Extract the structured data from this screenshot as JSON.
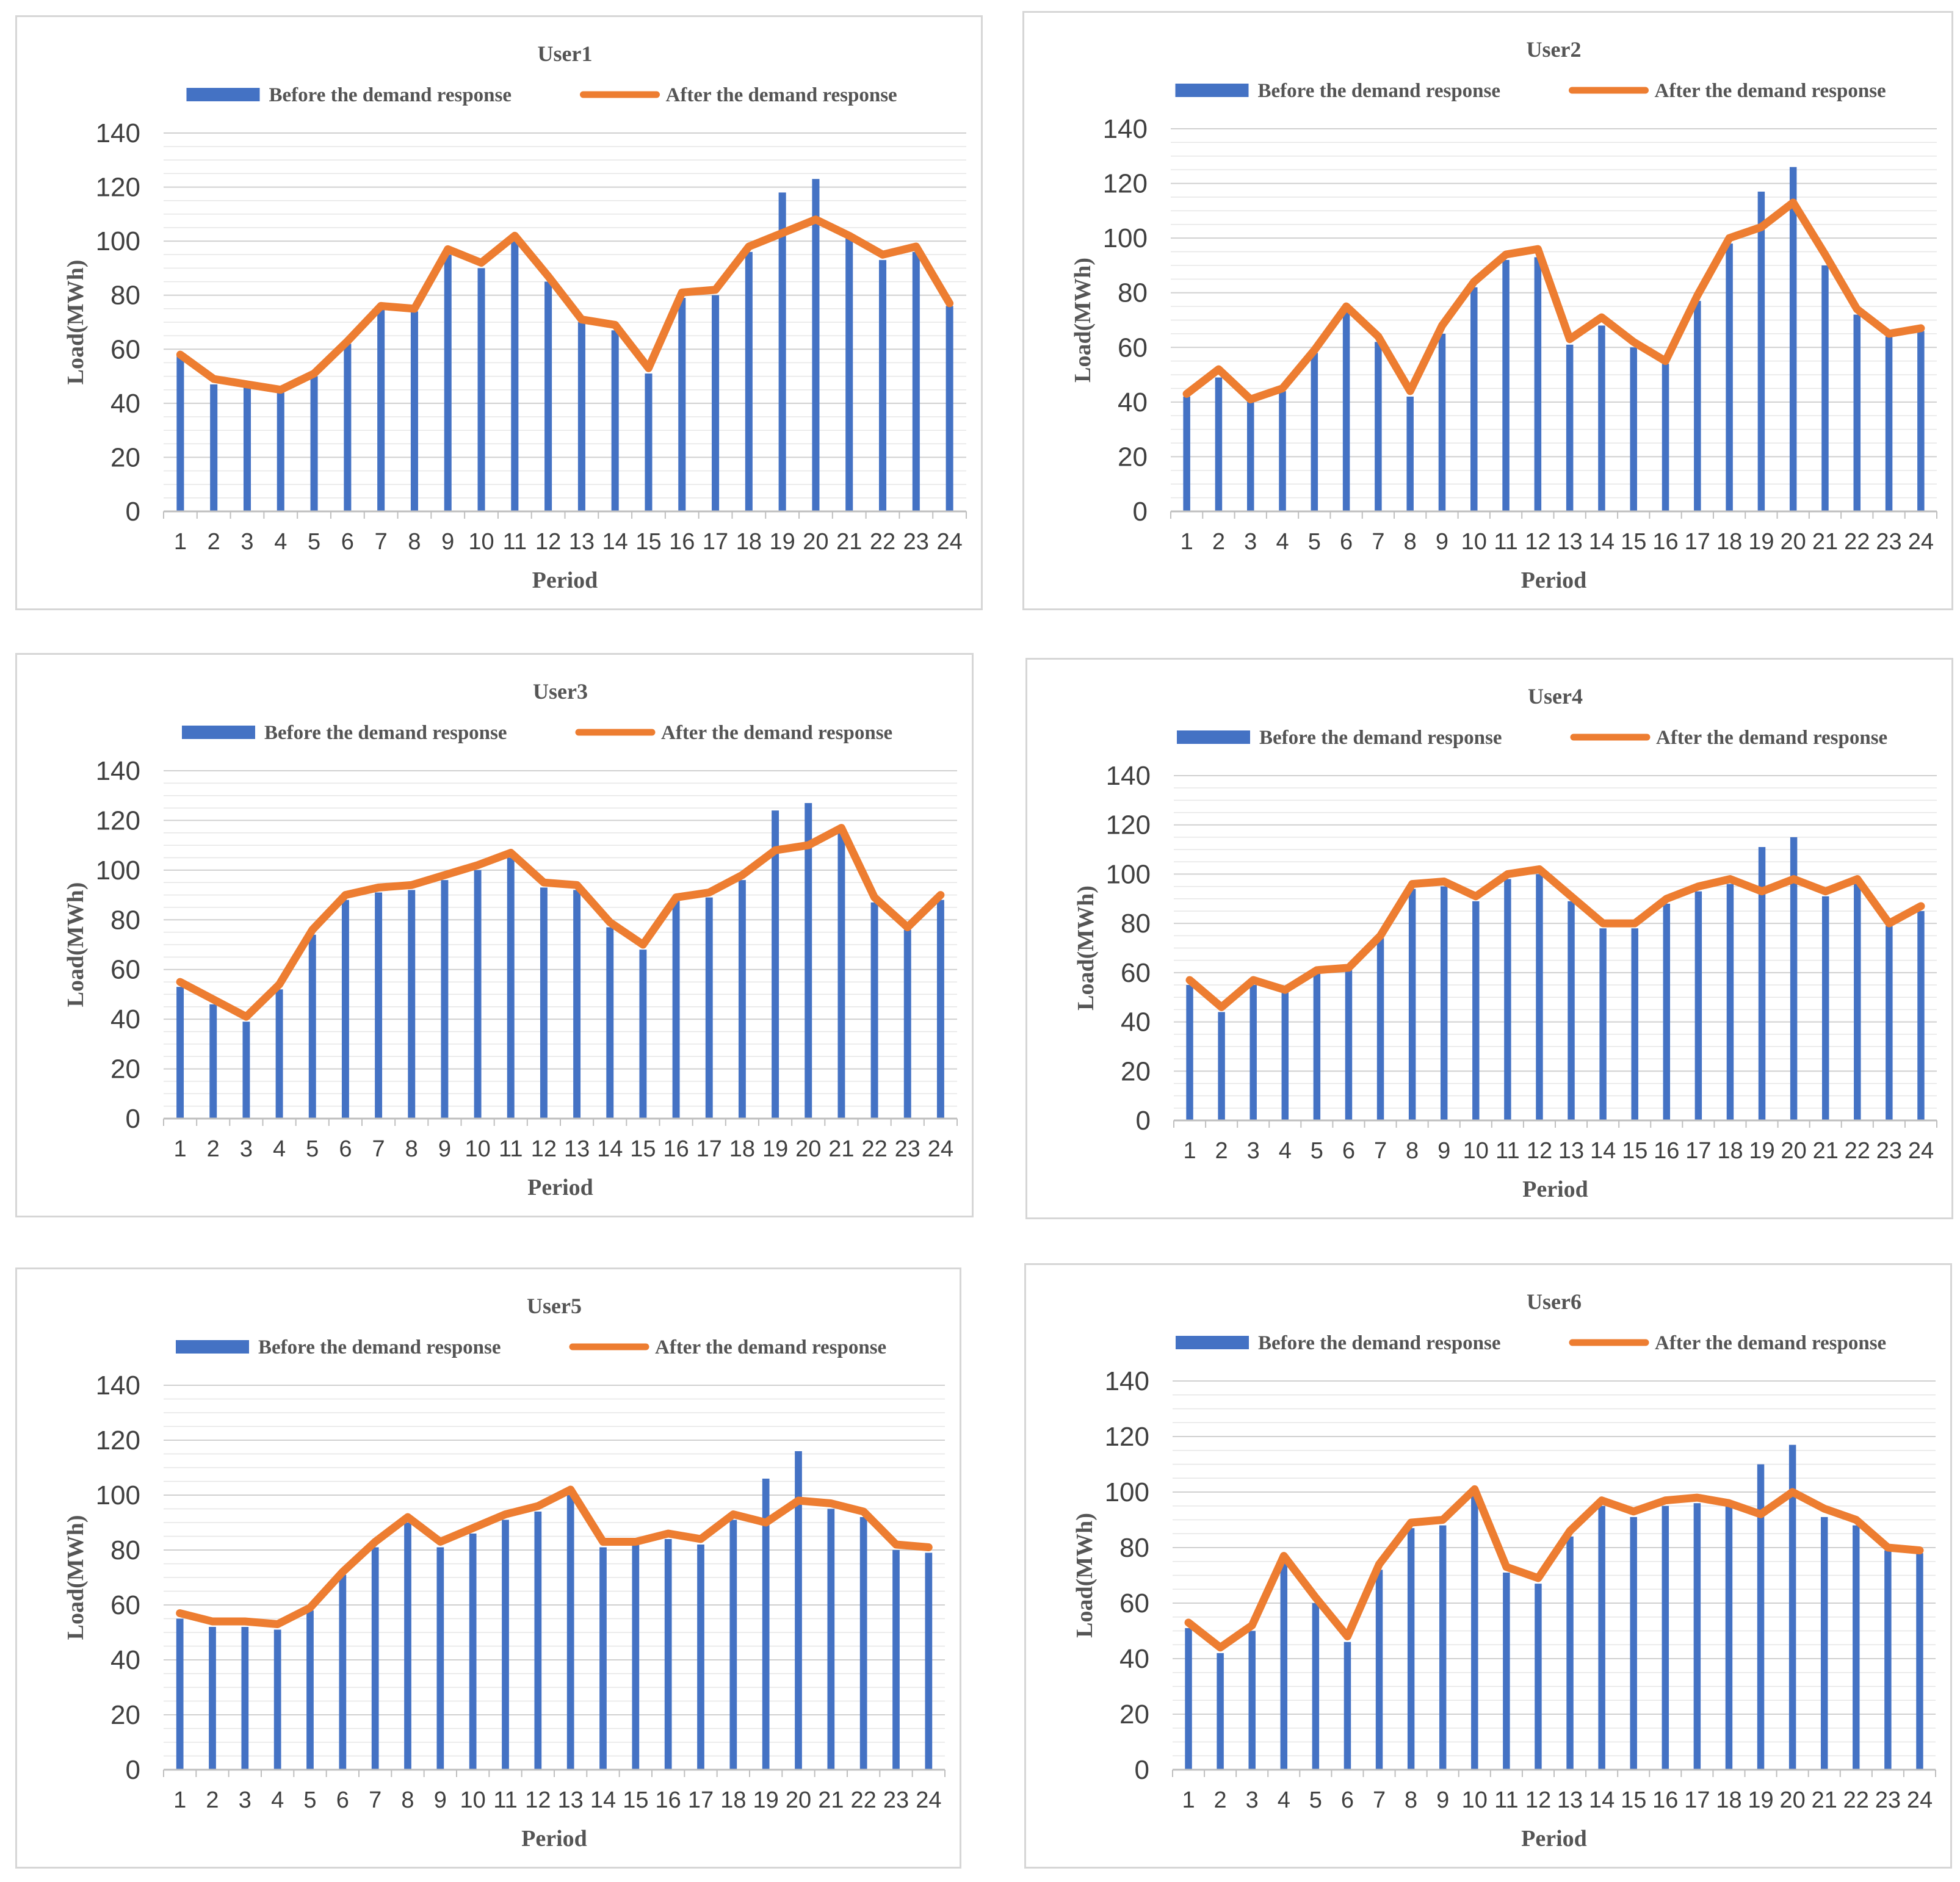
{
  "chart_data": [
    {
      "type": "bar+line",
      "title": "User1",
      "xlabel": "Period",
      "ylabel": "Load(MWh)",
      "ylim": [
        0,
        140
      ],
      "yticks": [
        0,
        20,
        40,
        60,
        80,
        100,
        120,
        140
      ],
      "categories": [
        "1",
        "2",
        "3",
        "4",
        "5",
        "6",
        "7",
        "8",
        "9",
        "10",
        "11",
        "12",
        "13",
        "14",
        "15",
        "16",
        "17",
        "18",
        "19",
        "20",
        "21",
        "22",
        "23",
        "24"
      ],
      "series": [
        {
          "name": "Before the demand response",
          "kind": "bar",
          "color": "#4472C4",
          "values": [
            58,
            47,
            46,
            44,
            50,
            62,
            76,
            74,
            95,
            90,
            100,
            85,
            70,
            67,
            51,
            79,
            80,
            96,
            118,
            123,
            101,
            93,
            96,
            76
          ]
        },
        {
          "name": "After the demand response",
          "kind": "line",
          "color": "#ED7D31",
          "values": [
            58,
            49,
            47,
            45,
            51,
            63,
            76,
            75,
            97,
            92,
            102,
            87,
            71,
            69,
            53,
            81,
            82,
            98,
            103,
            108,
            102,
            95,
            98,
            77
          ]
        }
      ]
    },
    {
      "type": "bar+line",
      "title": "User2",
      "xlabel": "Period",
      "ylabel": "Load(MWh)",
      "ylim": [
        0,
        140
      ],
      "yticks": [
        0,
        20,
        40,
        60,
        80,
        100,
        120,
        140
      ],
      "categories": [
        "1",
        "2",
        "3",
        "4",
        "5",
        "6",
        "7",
        "8",
        "9",
        "10",
        "11",
        "12",
        "13",
        "14",
        "15",
        "16",
        "17",
        "18",
        "19",
        "20",
        "21",
        "22",
        "23",
        "24"
      ],
      "series": [
        {
          "name": "Before the demand response",
          "kind": "bar",
          "color": "#4472C4",
          "values": [
            42,
            49,
            40,
            44,
            58,
            73,
            62,
            42,
            65,
            82,
            92,
            93,
            61,
            68,
            60,
            54,
            77,
            98,
            117,
            126,
            90,
            72,
            64,
            66
          ]
        },
        {
          "name": "After the demand response",
          "kind": "line",
          "color": "#ED7D31",
          "values": [
            43,
            52,
            41,
            45,
            59,
            75,
            64,
            44,
            68,
            84,
            94,
            96,
            63,
            71,
            62,
            55,
            79,
            100,
            104,
            113,
            94,
            74,
            65,
            67
          ]
        }
      ]
    },
    {
      "type": "bar+line",
      "title": "User3",
      "xlabel": "Period",
      "ylabel": "Load(MWh)",
      "ylim": [
        0,
        140
      ],
      "yticks": [
        0,
        20,
        40,
        60,
        80,
        100,
        120,
        140
      ],
      "categories": [
        "1",
        "2",
        "3",
        "4",
        "5",
        "6",
        "7",
        "8",
        "9",
        "10",
        "11",
        "12",
        "13",
        "14",
        "15",
        "16",
        "17",
        "18",
        "19",
        "20",
        "21",
        "22",
        "23",
        "24"
      ],
      "series": [
        {
          "name": "Before the demand response",
          "kind": "bar",
          "color": "#4472C4",
          "values": [
            53,
            46,
            39,
            52,
            74,
            88,
            91,
            92,
            96,
            100,
            105,
            93,
            92,
            77,
            68,
            88,
            89,
            96,
            124,
            127,
            116,
            87,
            76,
            88
          ]
        },
        {
          "name": "After the demand response",
          "kind": "line",
          "color": "#ED7D31",
          "values": [
            55,
            48,
            41,
            54,
            76,
            90,
            93,
            94,
            98,
            102,
            107,
            95,
            94,
            79,
            70,
            89,
            91,
            98,
            108,
            110,
            117,
            89,
            77,
            90
          ]
        }
      ]
    },
    {
      "type": "bar+line",
      "title": "User4",
      "xlabel": "Period",
      "ylabel": "Load(MWh)",
      "ylim": [
        0,
        140
      ],
      "yticks": [
        0,
        20,
        40,
        60,
        80,
        100,
        120,
        140
      ],
      "categories": [
        "1",
        "2",
        "3",
        "4",
        "5",
        "6",
        "7",
        "8",
        "9",
        "10",
        "11",
        "12",
        "13",
        "14",
        "15",
        "16",
        "17",
        "18",
        "19",
        "20",
        "21",
        "22",
        "23",
        "24"
      ],
      "series": [
        {
          "name": "Before the demand response",
          "kind": "bar",
          "color": "#4472C4",
          "values": [
            55,
            44,
            55,
            52,
            60,
            61,
            74,
            94,
            95,
            89,
            98,
            100,
            89,
            78,
            78,
            88,
            93,
            96,
            111,
            115,
            91,
            96,
            79,
            85
          ]
        },
        {
          "name": "After the demand response",
          "kind": "line",
          "color": "#ED7D31",
          "values": [
            57,
            46,
            57,
            53,
            61,
            62,
            75,
            96,
            97,
            91,
            100,
            102,
            91,
            80,
            80,
            90,
            95,
            98,
            93,
            98,
            93,
            98,
            80,
            87
          ]
        }
      ]
    },
    {
      "type": "bar+line",
      "title": "User5",
      "xlabel": "Period",
      "ylabel": "Load(MWh)",
      "ylim": [
        0,
        140
      ],
      "yticks": [
        0,
        20,
        40,
        60,
        80,
        100,
        120,
        140
      ],
      "categories": [
        "1",
        "2",
        "3",
        "4",
        "5",
        "6",
        "7",
        "8",
        "9",
        "10",
        "11",
        "12",
        "13",
        "14",
        "15",
        "16",
        "17",
        "18",
        "19",
        "20",
        "21",
        "22",
        "23",
        "24"
      ],
      "series": [
        {
          "name": "Before the demand response",
          "kind": "bar",
          "color": "#4472C4",
          "values": [
            55,
            52,
            52,
            51,
            58,
            71,
            81,
            90,
            81,
            86,
            91,
            94,
            100,
            81,
            82,
            84,
            82,
            91,
            106,
            116,
            95,
            92,
            80,
            79
          ]
        },
        {
          "name": "After the demand response",
          "kind": "line",
          "color": "#ED7D31",
          "values": [
            57,
            54,
            54,
            53,
            59,
            72,
            83,
            92,
            83,
            88,
            93,
            96,
            102,
            83,
            83,
            86,
            84,
            93,
            90,
            98,
            97,
            94,
            82,
            81
          ]
        }
      ]
    },
    {
      "type": "bar+line",
      "title": "User6",
      "xlabel": "Period",
      "ylabel": "Load(MWh)",
      "ylim": [
        0,
        140
      ],
      "yticks": [
        0,
        20,
        40,
        60,
        80,
        100,
        120,
        140
      ],
      "categories": [
        "1",
        "2",
        "3",
        "4",
        "5",
        "6",
        "7",
        "8",
        "9",
        "10",
        "11",
        "12",
        "13",
        "14",
        "15",
        "16",
        "17",
        "18",
        "19",
        "20",
        "21",
        "22",
        "23",
        "24"
      ],
      "series": [
        {
          "name": "Before the demand response",
          "kind": "bar",
          "color": "#4472C4",
          "values": [
            51,
            42,
            50,
            75,
            60,
            46,
            72,
            87,
            88,
            99,
            71,
            67,
            84,
            95,
            91,
            95,
            96,
            95,
            110,
            117,
            91,
            88,
            79,
            78
          ]
        },
        {
          "name": "After the demand response",
          "kind": "line",
          "color": "#ED7D31",
          "values": [
            53,
            44,
            52,
            77,
            62,
            48,
            74,
            89,
            90,
            101,
            73,
            69,
            86,
            97,
            93,
            97,
            98,
            96,
            92,
            100,
            94,
            90,
            80,
            79
          ]
        }
      ]
    }
  ]
}
